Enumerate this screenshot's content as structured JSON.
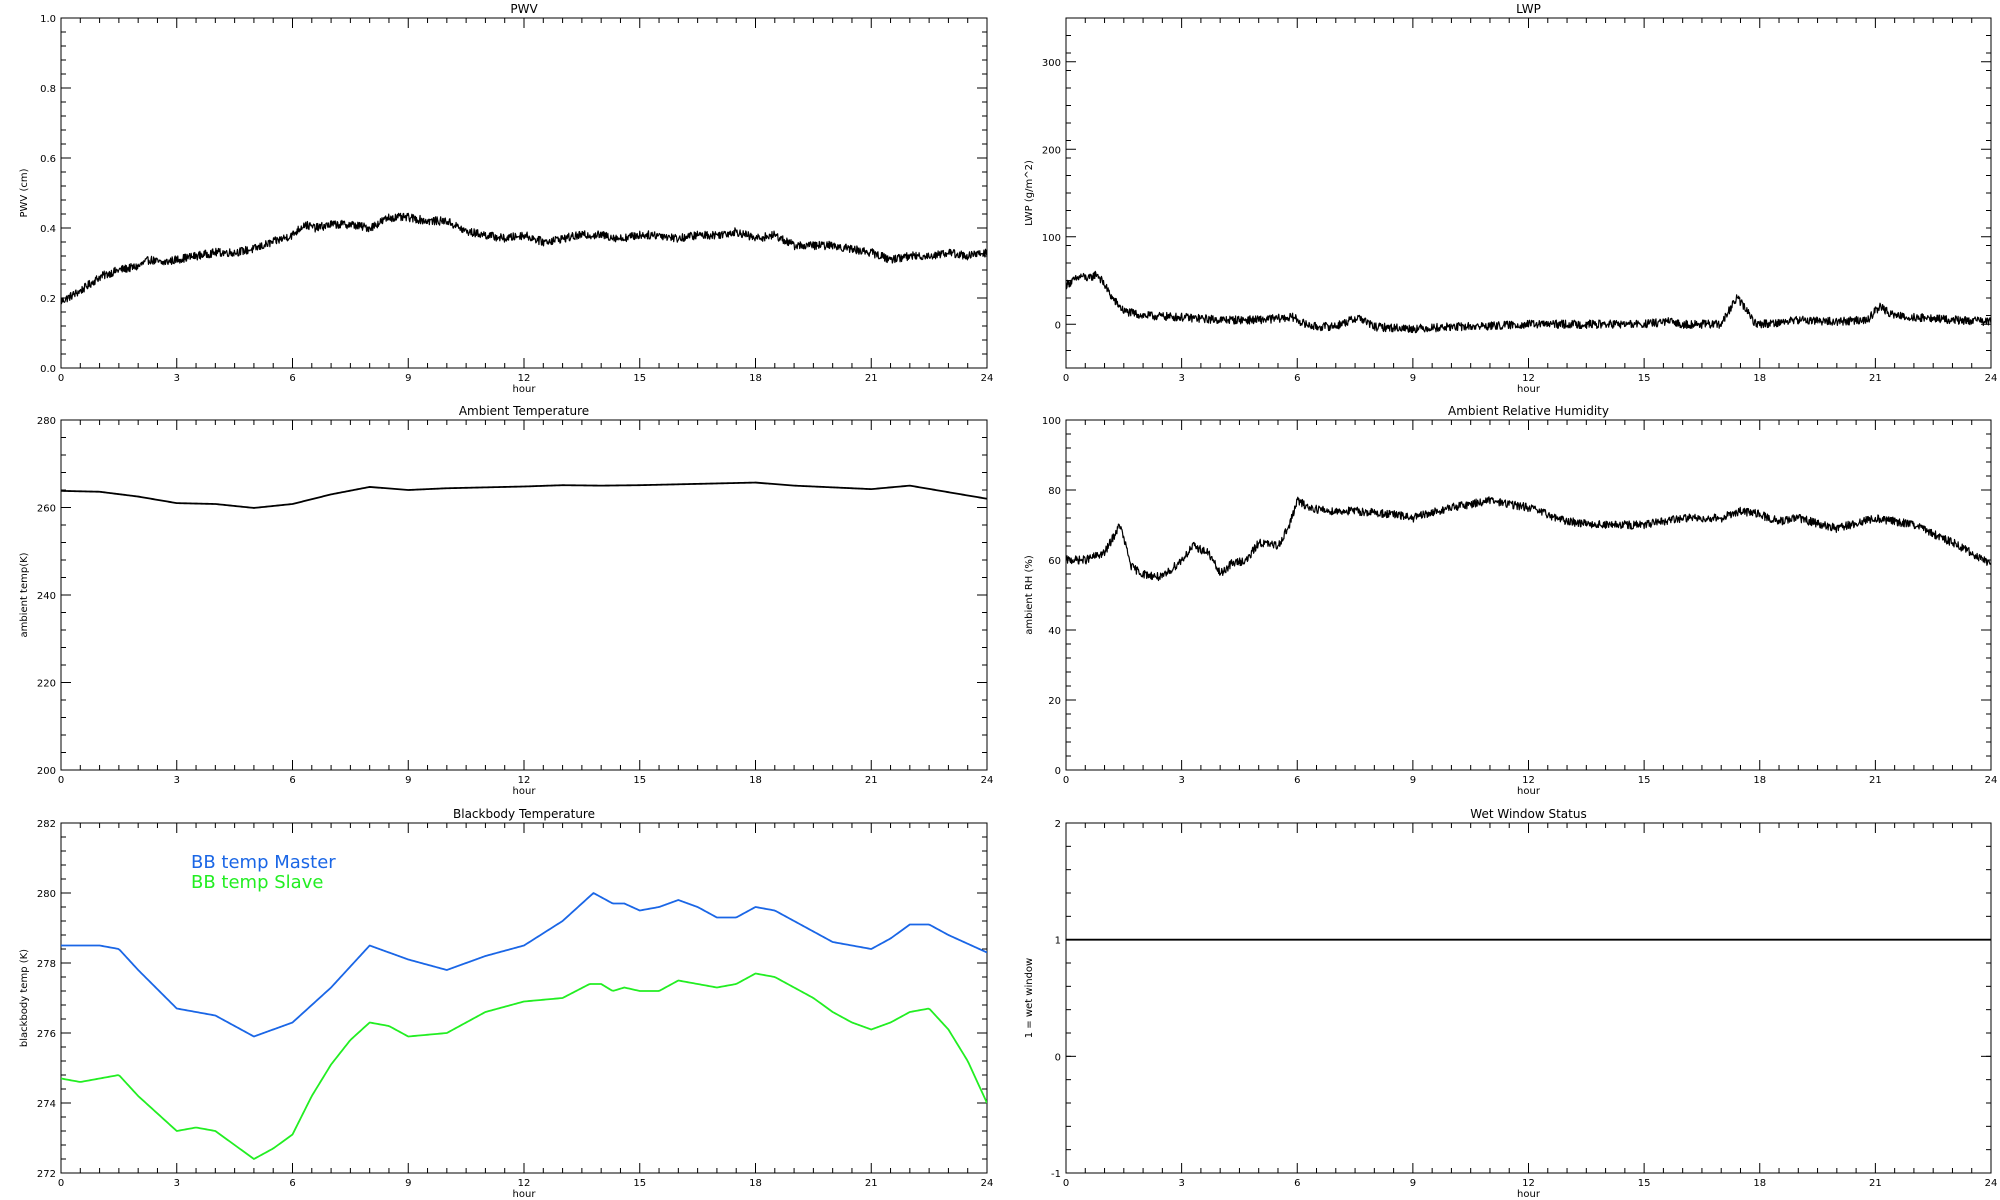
{
  "chart_data": [
    {
      "id": "pwv",
      "type": "line",
      "title": "PWV",
      "xlabel": "hour",
      "ylabel": "PWV (cm)",
      "xlim": [
        0,
        24
      ],
      "ylim": [
        0.0,
        1.0
      ],
      "xticks": [
        "0",
        "3",
        "6",
        "9",
        "12",
        "15",
        "18",
        "21",
        "24"
      ],
      "yticks": [
        "0.0",
        "0.2",
        "0.4",
        "0.6",
        "0.8",
        "1.0"
      ],
      "grid": false,
      "noisy": true,
      "series": [
        {
          "color": "#000000",
          "x": [
            0,
            0.5,
            1,
            1.5,
            2,
            2.3,
            2.6,
            3,
            3.5,
            4,
            4.5,
            5,
            5.5,
            6,
            6.3,
            6.6,
            7,
            7.5,
            8,
            8.5,
            9,
            9.5,
            10,
            10.5,
            11,
            11.5,
            12,
            12.5,
            13,
            13.5,
            14,
            14.5,
            15,
            15.5,
            16,
            16.5,
            17,
            17.5,
            18,
            18.5,
            19,
            19.5,
            20,
            20.5,
            21,
            21.5,
            22,
            22.5,
            23,
            23.5,
            24
          ],
          "y": [
            0.19,
            0.22,
            0.26,
            0.28,
            0.29,
            0.31,
            0.3,
            0.31,
            0.32,
            0.33,
            0.33,
            0.34,
            0.36,
            0.38,
            0.41,
            0.4,
            0.41,
            0.41,
            0.4,
            0.43,
            0.43,
            0.42,
            0.42,
            0.39,
            0.38,
            0.37,
            0.38,
            0.36,
            0.37,
            0.38,
            0.38,
            0.37,
            0.38,
            0.38,
            0.37,
            0.38,
            0.38,
            0.39,
            0.37,
            0.38,
            0.35,
            0.35,
            0.35,
            0.34,
            0.33,
            0.31,
            0.32,
            0.32,
            0.33,
            0.32,
            0.33
          ]
        }
      ]
    },
    {
      "id": "lwp",
      "type": "line",
      "title": "LWP",
      "xlabel": "hour",
      "ylabel": "LWP (g/m^2)",
      "xlim": [
        0,
        24
      ],
      "ylim": [
        -50,
        350
      ],
      "xticks": [
        "0",
        "3",
        "6",
        "9",
        "12",
        "15",
        "18",
        "21",
        "24"
      ],
      "yticks": [
        "0",
        "100",
        "200",
        "300"
      ],
      "ytickvalues": [
        0,
        100,
        200,
        300
      ],
      "grid": false,
      "noisy": true,
      "series": [
        {
          "color": "#000000",
          "x": [
            0,
            0.2,
            0.4,
            0.6,
            0.8,
            1.0,
            1.2,
            1.5,
            2,
            3,
            4,
            5,
            5.9,
            6.2,
            6.5,
            7,
            7.6,
            8,
            9,
            10,
            11,
            12,
            13,
            14,
            15,
            15.6,
            16,
            17,
            17.4,
            17.6,
            17.9,
            18.5,
            19,
            20,
            20.8,
            21.1,
            21.5,
            22,
            23,
            24
          ],
          "y": [
            45,
            50,
            55,
            52,
            58,
            45,
            30,
            15,
            10,
            8,
            5,
            5,
            8,
            0,
            -3,
            -2,
            8,
            -3,
            -5,
            -3,
            -2,
            0,
            0,
            0,
            0,
            3,
            0,
            0,
            30,
            20,
            0,
            2,
            5,
            3,
            5,
            20,
            10,
            8,
            5,
            3
          ]
        }
      ]
    },
    {
      "id": "ambient-temperature",
      "type": "line",
      "title": "Ambient Temperature",
      "xlabel": "hour",
      "ylabel": "ambient temp(K)",
      "xlim": [
        0,
        24
      ],
      "ylim": [
        200,
        280
      ],
      "xticks": [
        "0",
        "3",
        "6",
        "9",
        "12",
        "15",
        "18",
        "21",
        "24"
      ],
      "yticks": [
        "200",
        "220",
        "240",
        "260",
        "280"
      ],
      "grid": false,
      "noisy": false,
      "series": [
        {
          "color": "#000000",
          "x": [
            0,
            1,
            2,
            3,
            4,
            5,
            6,
            7,
            8,
            9,
            10,
            11,
            12,
            13,
            14,
            15,
            16,
            17,
            18,
            19,
            20,
            21,
            22,
            23,
            24
          ],
          "y": [
            263.8,
            263.6,
            262.5,
            261.0,
            260.8,
            259.9,
            260.8,
            263.0,
            264.7,
            264.0,
            264.4,
            264.6,
            264.8,
            265.1,
            265.0,
            265.1,
            265.3,
            265.5,
            265.7,
            265.0,
            264.6,
            264.2,
            265.0,
            263.5,
            262.0
          ]
        }
      ]
    },
    {
      "id": "ambient-relative-humidity",
      "type": "line",
      "title": "Ambient Relative Humidity",
      "xlabel": "hour",
      "ylabel": "ambient RH (%)",
      "xlim": [
        0,
        24
      ],
      "ylim": [
        0,
        100
      ],
      "xticks": [
        "0",
        "3",
        "6",
        "9",
        "12",
        "15",
        "18",
        "21",
        "24"
      ],
      "yticks": [
        "0",
        "20",
        "40",
        "60",
        "80",
        "100"
      ],
      "grid": false,
      "noisy": true,
      "series": [
        {
          "color": "#000000",
          "x": [
            0,
            0.5,
            1,
            1.4,
            1.7,
            2,
            2.5,
            3,
            3.3,
            3.7,
            4,
            4.3,
            4.7,
            5,
            5.5,
            5.8,
            6,
            6.3,
            6.8,
            7.5,
            8.5,
            9,
            10,
            11,
            12,
            13,
            14,
            15,
            16,
            17,
            17.5,
            18,
            18.5,
            19,
            20,
            21,
            22,
            23,
            24
          ],
          "y": [
            60,
            60,
            62,
            70,
            58,
            56,
            55,
            60,
            64,
            62,
            56,
            59,
            60,
            65,
            64,
            70,
            77,
            75,
            74,
            74,
            73,
            72,
            75,
            77,
            75,
            71,
            70,
            70,
            72,
            72,
            74,
            73,
            71,
            72,
            69,
            72,
            70,
            65,
            59
          ]
        }
      ]
    },
    {
      "id": "blackbody-temperature",
      "type": "line",
      "title": "Blackbody Temperature",
      "xlabel": "hour",
      "ylabel": "blackbody temp (K)",
      "xlim": [
        0,
        24
      ],
      "ylim": [
        272,
        282
      ],
      "xticks": [
        "0",
        "3",
        "6",
        "9",
        "12",
        "15",
        "18",
        "21",
        "24"
      ],
      "yticks": [
        "272",
        "274",
        "276",
        "278",
        "280",
        "282"
      ],
      "grid": false,
      "noisy": false,
      "legend": {
        "placement": "top-left"
      },
      "series": [
        {
          "name": "BB temp Master",
          "color": "#1a66e6",
          "x": [
            0,
            1,
            1.5,
            2,
            3,
            4,
            5,
            6,
            7,
            8,
            9,
            10,
            11,
            12,
            13,
            13.8,
            14.3,
            14.6,
            15,
            15.5,
            16,
            16.5,
            17,
            17.5,
            18,
            18.5,
            19,
            19.5,
            20,
            20.5,
            21,
            21.5,
            22,
            22.5,
            23,
            24
          ],
          "y": [
            278.5,
            278.5,
            278.4,
            277.8,
            276.7,
            276.5,
            275.9,
            276.3,
            277.3,
            278.5,
            278.1,
            277.8,
            278.2,
            278.5,
            279.2,
            280.0,
            279.7,
            279.7,
            279.5,
            279.6,
            279.8,
            279.6,
            279.3,
            279.3,
            279.6,
            279.5,
            279.2,
            278.9,
            278.6,
            278.5,
            278.4,
            278.7,
            279.1,
            279.1,
            278.8,
            278.3
          ]
        },
        {
          "name": "BB temp Slave",
          "color": "#22ee22",
          "x": [
            0,
            0.5,
            1,
            1.5,
            2,
            2.5,
            3,
            3.5,
            4,
            4.5,
            5,
            5.5,
            6,
            6.5,
            7,
            7.5,
            8,
            8.5,
            9,
            10,
            11,
            12,
            13,
            13.7,
            14,
            14.3,
            14.6,
            15,
            15.5,
            16,
            16.5,
            17,
            17.5,
            18,
            18.5,
            19,
            19.5,
            20,
            20.5,
            21,
            21.5,
            22,
            22.5,
            23,
            23.5,
            24
          ],
          "y": [
            274.7,
            274.6,
            274.7,
            274.8,
            274.2,
            273.7,
            273.2,
            273.3,
            273.2,
            272.8,
            272.4,
            272.7,
            273.1,
            274.2,
            275.1,
            275.8,
            276.3,
            276.2,
            275.9,
            276.0,
            276.6,
            276.9,
            277.0,
            277.4,
            277.4,
            277.2,
            277.3,
            277.2,
            277.2,
            277.5,
            277.4,
            277.3,
            277.4,
            277.7,
            277.6,
            277.3,
            277.0,
            276.6,
            276.3,
            276.1,
            276.3,
            276.6,
            276.7,
            276.1,
            275.2,
            274.0
          ]
        }
      ]
    },
    {
      "id": "wet-window-status",
      "type": "line",
      "title": "Wet Window Status",
      "xlabel": "hour",
      "ylabel": "1 = wet window",
      "xlim": [
        0,
        24
      ],
      "ylim": [
        -1,
        2
      ],
      "xticks": [
        "0",
        "3",
        "6",
        "9",
        "12",
        "15",
        "18",
        "21",
        "24"
      ],
      "yticks": [
        "-1",
        "0",
        "1",
        "2"
      ],
      "grid": false,
      "noisy": false,
      "series": [
        {
          "color": "#000000",
          "x": [
            0,
            24
          ],
          "y": [
            1,
            1
          ]
        }
      ]
    }
  ]
}
